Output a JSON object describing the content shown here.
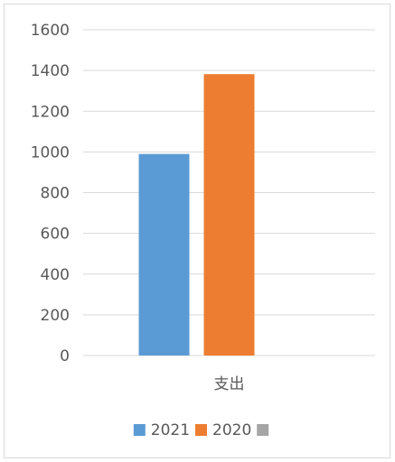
{
  "chart_data": {
    "type": "bar",
    "categories": [
      "支出"
    ],
    "series": [
      {
        "name": "2021",
        "values": [
          990
        ],
        "color": "#5b9bd5"
      },
      {
        "name": "2020",
        "values": [
          1382
        ],
        "color": "#ed7d31"
      },
      {
        "name": "",
        "values": [
          0
        ],
        "color": "#a5a5a5"
      }
    ],
    "title": "",
    "xlabel": "",
    "ylabel": "",
    "ylim": [
      0,
      1600
    ],
    "yticks": [
      0,
      200,
      400,
      600,
      800,
      1000,
      1200,
      1400,
      1600
    ],
    "grid": true,
    "legend": "bottom"
  }
}
